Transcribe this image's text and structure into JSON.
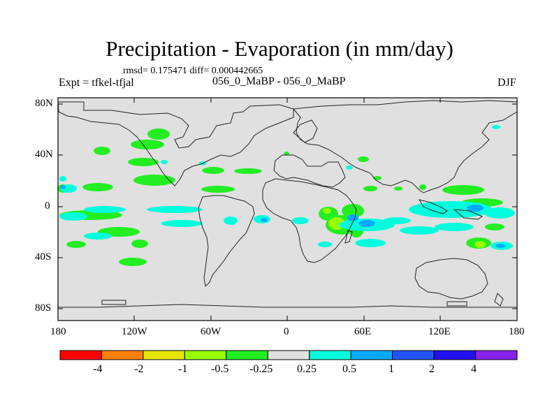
{
  "title": "Precipitation - Evaporation (in mm/day)",
  "stats": "rmsd= 0.175471 diff= 0.000442665",
  "experiment": "Expt = tfkel-tfjal",
  "period": "056_0_MaBP - 056_0_MaBP",
  "season": "DJF",
  "lat_labels": [
    "80N",
    "40N",
    "0",
    "40S",
    "80S"
  ],
  "lon_labels": [
    "180",
    "120W",
    "60W",
    "0",
    "60E",
    "120E",
    "180"
  ],
  "colorbar": {
    "labels": [
      "-4",
      "-2",
      "-1",
      "-0.5",
      "-0.25",
      "0.25",
      "0.5",
      "1",
      "2",
      "4"
    ],
    "colors": [
      "#ff0000",
      "#ff8000",
      "#e6e600",
      "#99ff00",
      "#22ee22",
      "#e0e0e0",
      "#00ffdd",
      "#00aaff",
      "#2255ff",
      "#2211ee",
      "#8822ee"
    ]
  }
}
